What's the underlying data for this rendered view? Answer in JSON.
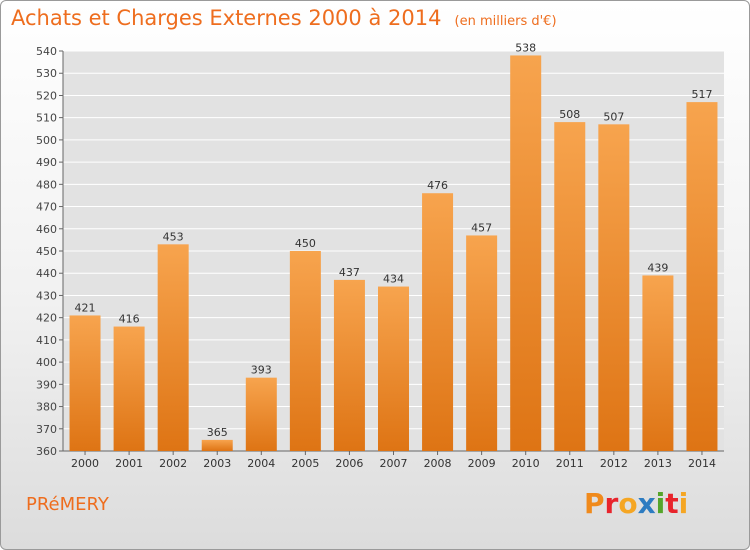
{
  "title": "Achats et Charges Externes 2000 à 2014",
  "subtitle": "(en milliers d'€)",
  "commune": "PRéMERY",
  "brand": {
    "letters": [
      "P",
      "r",
      "o",
      "x",
      "i",
      "t",
      "i"
    ],
    "colors": [
      "#f08a1c",
      "#e8242c",
      "#f5a623",
      "#2d7cc1",
      "#55a52a",
      "#e8242c",
      "#f5a623"
    ]
  },
  "colors": {
    "accent": "#ee6d1e",
    "bar_top": "#f7a44e",
    "bar_bottom": "#de7414",
    "grid": "#ffffff",
    "plot_bg": "#e2e2e2"
  },
  "chart_data": {
    "type": "bar",
    "categories": [
      "2000",
      "2001",
      "2002",
      "2003",
      "2004",
      "2005",
      "2006",
      "2007",
      "2008",
      "2009",
      "2010",
      "2011",
      "2012",
      "2013",
      "2014"
    ],
    "values": [
      421,
      416,
      453,
      365,
      393,
      450,
      437,
      434,
      476,
      457,
      538,
      508,
      507,
      439,
      517
    ],
    "ylim": [
      360,
      540
    ],
    "yticks": [
      360,
      370,
      380,
      390,
      400,
      410,
      420,
      430,
      440,
      450,
      460,
      470,
      480,
      490,
      500,
      510,
      520,
      530,
      540
    ],
    "grid": true,
    "data_labels": true
  }
}
